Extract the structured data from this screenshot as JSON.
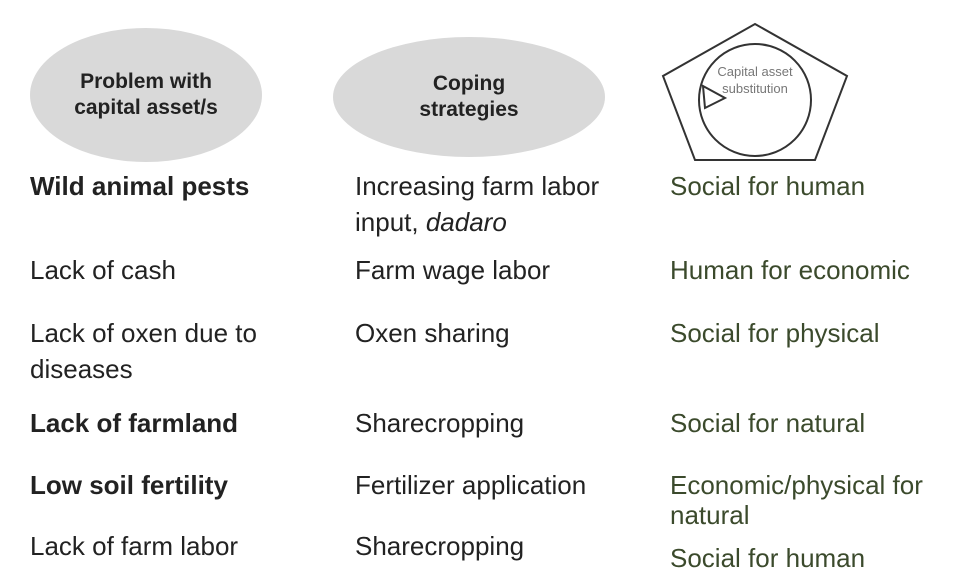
{
  "headers": [
    "Problem with capital asset/s",
    "Coping strategies",
    "Capital asset substitution"
  ],
  "rows": [
    {
      "problem": "Wild animal pests",
      "bold": true,
      "strategy": "Increasing farm labor input,",
      "strategy_emphasis": "dadaro",
      "substitution": "Social for human"
    },
    {
      "problem": "Lack of cash",
      "bold": false,
      "strategy": "Farm wage labor",
      "substitution": "Human for economic"
    },
    {
      "problem": "Lack of oxen due to diseases",
      "bold": false,
      "strategy": "Oxen sharing",
      "substitution": "Social for physical"
    },
    {
      "problem": "Lack of farmland",
      "bold": true,
      "strategy": "Sharecropping",
      "substitution": "Social for natural"
    },
    {
      "problem": "Low soil fertility",
      "bold": true,
      "strategy": "Fertilizer application",
      "substitution": "Economic/physical for natural"
    },
    {
      "problem": "Lack of farm labor",
      "bold": false,
      "strategy": "Sharecropping",
      "substitution": "Social for human"
    }
  ]
}
